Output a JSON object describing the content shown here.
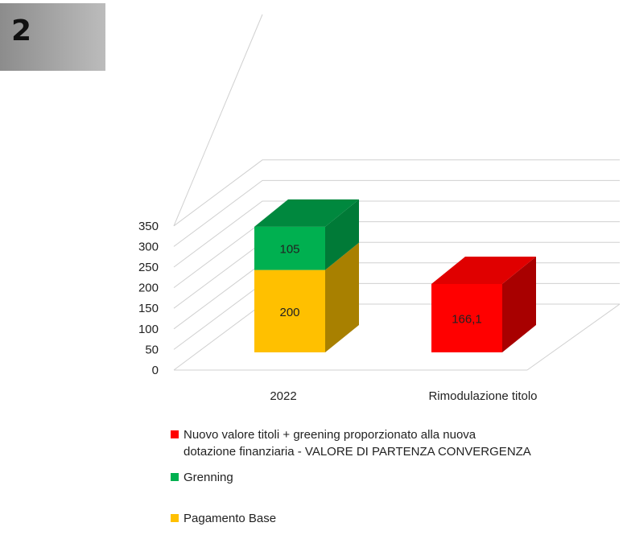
{
  "badge": {
    "number": "2"
  },
  "chart_data": {
    "type": "bar",
    "stacked": true,
    "style": "3d",
    "categories": [
      "2022",
      "Rimodulazione titolo"
    ],
    "ylim": [
      0,
      350
    ],
    "yticks": [
      "0",
      "50",
      "100",
      "150",
      "200",
      "250",
      "300",
      "350"
    ],
    "grid": true,
    "legend_position": "bottom",
    "series": [
      {
        "name": "Pagamento Base",
        "values": [
          200,
          null
        ],
        "labels": [
          "200",
          ""
        ],
        "color": "#FFC000",
        "side_color": "#A88000",
        "top_color": "#FFD24D"
      },
      {
        "name": "Grenning",
        "values": [
          105,
          null
        ],
        "labels": [
          "105",
          ""
        ],
        "color": "#00B050",
        "side_color": "#007A37",
        "top_color": "#00883E"
      },
      {
        "name": "Nuovo valore titoli + greening proporzionato alla nuova dotazione finanziaria - VALORE DI PARTENZA CONVERGENZA",
        "values": [
          null,
          166.1
        ],
        "labels": [
          "",
          "166,1"
        ],
        "color": "#FF0000",
        "side_color": "#A80000",
        "top_color": "#E00000"
      }
    ]
  },
  "legend": [
    {
      "line1": "Nuovo valore titoli + greening proporzionato alla nuova",
      "line2": "dotazione finanziaria - VALORE DI PARTENZA CONVERGENZA",
      "color": "#FF0000"
    },
    {
      "line1": "Grenning",
      "color": "#00B050"
    },
    {
      "line1": "Pagamento Base",
      "color": "#FFC000"
    }
  ]
}
